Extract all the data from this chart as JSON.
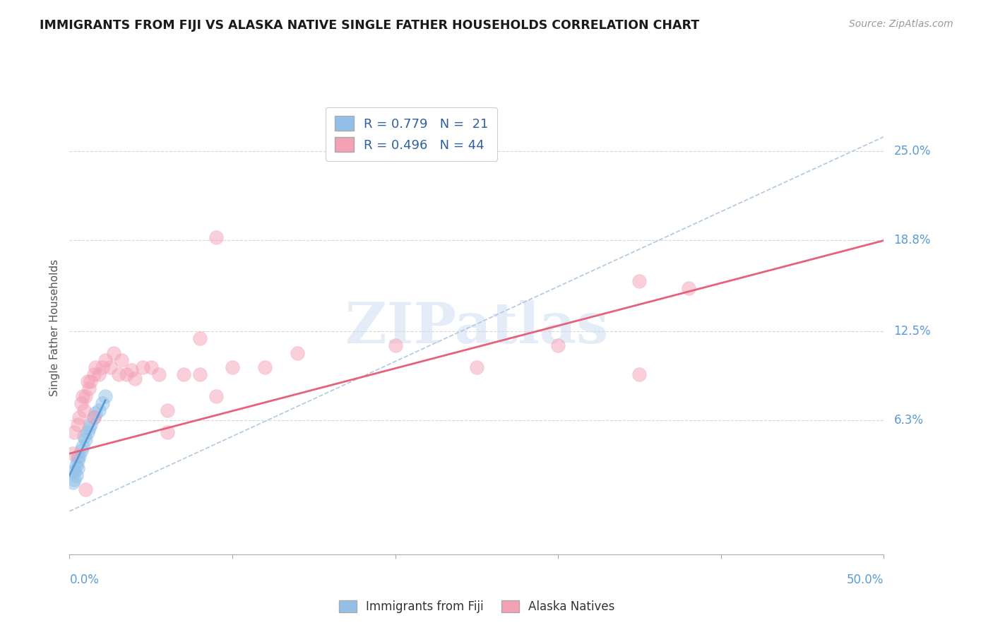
{
  "title": "IMMIGRANTS FROM FIJI VS ALASKA NATIVE SINGLE FATHER HOUSEHOLDS CORRELATION CHART",
  "source": "Source: ZipAtlas.com",
  "ylabel": "Single Father Households",
  "xlim": [
    0.0,
    0.5
  ],
  "ylim": [
    -0.03,
    0.285
  ],
  "y_tick_labels": [
    "6.3%",
    "12.5%",
    "18.8%",
    "25.0%"
  ],
  "y_tick_vals": [
    0.063,
    0.125,
    0.188,
    0.25
  ],
  "x_tick_vals": [
    0.0,
    0.1,
    0.2,
    0.3,
    0.4,
    0.5
  ],
  "blue_color": "#92C0E8",
  "pink_color": "#F4A0B5",
  "blue_line_color": "#5B9BD5",
  "pink_line_color": "#E8607A",
  "dashed_line_color": "#B0C8E0",
  "grid_color": "#D8D8D8",
  "axis_label_color": "#5B9BD5",
  "fiji_points_x": [
    0.002,
    0.003,
    0.003,
    0.004,
    0.004,
    0.005,
    0.005,
    0.005,
    0.006,
    0.007,
    0.008,
    0.009,
    0.01,
    0.011,
    0.012,
    0.013,
    0.015,
    0.016,
    0.018,
    0.02,
    0.022
  ],
  "fiji_points_y": [
    0.02,
    0.022,
    0.028,
    0.025,
    0.032,
    0.03,
    0.035,
    0.038,
    0.038,
    0.042,
    0.045,
    0.052,
    0.05,
    0.055,
    0.058,
    0.06,
    0.065,
    0.068,
    0.07,
    0.075,
    0.08
  ],
  "alaska_points_x": [
    0.002,
    0.003,
    0.005,
    0.006,
    0.007,
    0.008,
    0.009,
    0.01,
    0.011,
    0.012,
    0.013,
    0.015,
    0.016,
    0.018,
    0.02,
    0.022,
    0.025,
    0.027,
    0.03,
    0.032,
    0.035,
    0.038,
    0.04,
    0.045,
    0.05,
    0.055,
    0.06,
    0.07,
    0.08,
    0.09,
    0.1,
    0.12,
    0.14,
    0.2,
    0.25,
    0.3,
    0.35,
    0.38,
    0.06,
    0.08,
    0.09,
    0.01,
    0.35,
    0.015
  ],
  "alaska_points_y": [
    0.04,
    0.055,
    0.06,
    0.065,
    0.075,
    0.08,
    0.07,
    0.08,
    0.09,
    0.085,
    0.09,
    0.095,
    0.1,
    0.095,
    0.1,
    0.105,
    0.1,
    0.11,
    0.095,
    0.105,
    0.095,
    0.098,
    0.092,
    0.1,
    0.1,
    0.095,
    0.07,
    0.095,
    0.095,
    0.08,
    0.1,
    0.1,
    0.11,
    0.115,
    0.1,
    0.115,
    0.095,
    0.155,
    0.055,
    0.12,
    0.19,
    0.015,
    0.16,
    0.065
  ],
  "pink_line_x": [
    0.0,
    0.5
  ],
  "pink_line_y": [
    0.04,
    0.188
  ],
  "blue_line_x": [
    0.0,
    0.022
  ],
  "blue_line_y": [
    0.025,
    0.077
  ],
  "dash_line_x": [
    0.0,
    0.5
  ],
  "dash_line_y": [
    0.0,
    0.26
  ]
}
